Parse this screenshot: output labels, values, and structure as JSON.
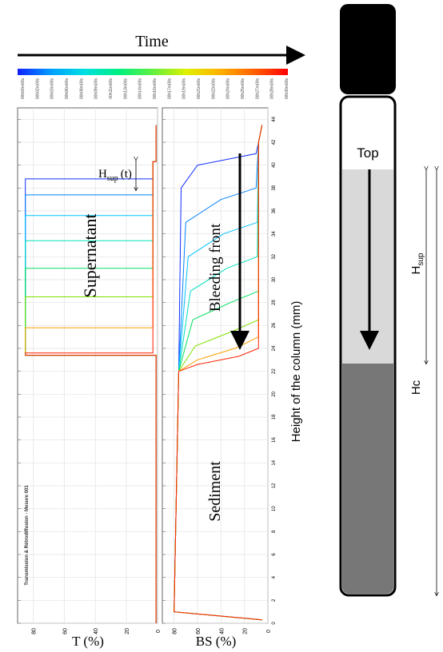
{
  "figure": {
    "time_label": "Time",
    "time_ticks": [
      "00h00m00s",
      "00h02m00s",
      "00h03m00s",
      "00h06m00s",
      "00h08m00s",
      "00h09m00s",
      "00h11m00s",
      "00h13m00s",
      "00h14m00s",
      "00h16m00s",
      "00h17m00s",
      "00h19m00s",
      "00h21m00s",
      "00h22m00s",
      "00h24m00s",
      "00h25m00s",
      "00h27m00s",
      "00h28m00s",
      "00h30m00s"
    ],
    "colorbar_colors": [
      "#1020ff",
      "#00a0ff",
      "#00e0e0",
      "#00f080",
      "#60f040",
      "#e0f000",
      "#ffb000",
      "#ff6000",
      "#ff0000"
    ],
    "height_axis_label": "Height of the column (mm)",
    "side_note": "Transmission & Rétrodiffusion - Mesure 001"
  },
  "chart_data": [
    {
      "type": "line",
      "xlabel": "T (%)",
      "xlim": [
        90,
        0
      ],
      "ylim": [
        0,
        45
      ],
      "xticks": [
        80,
        60,
        40,
        20,
        0
      ],
      "annotations": {
        "region": "Supernatant",
        "h_main": "H",
        "h_sub": "sup",
        "h_t": "(t)"
      },
      "series": [
        {
          "color": "#1030ff",
          "x": [
            1,
            1,
            85,
            85,
            3,
            3,
            1,
            1
          ],
          "values": [
            0,
            23.4,
            23.4,
            38.8,
            38.8,
            40.3,
            40.3,
            43.5
          ]
        },
        {
          "color": "#0080ff",
          "x": [
            1,
            1,
            85,
            85,
            3,
            3,
            1,
            1
          ],
          "values": [
            0,
            23.4,
            23.4,
            37.4,
            37.4,
            40.3,
            40.3,
            43.5
          ]
        },
        {
          "color": "#00c0ff",
          "x": [
            1,
            1,
            85,
            85,
            3,
            3,
            1,
            1
          ],
          "values": [
            0,
            23.4,
            23.4,
            35.6,
            35.6,
            40.3,
            40.3,
            43.5
          ]
        },
        {
          "color": "#00e0c0",
          "x": [
            1,
            1,
            85,
            85,
            3,
            3,
            1,
            1
          ],
          "values": [
            0,
            23.4,
            23.4,
            33.4,
            33.4,
            40.3,
            40.3,
            43.5
          ]
        },
        {
          "color": "#00e060",
          "x": [
            1,
            1,
            85,
            85,
            3,
            3,
            1,
            1
          ],
          "values": [
            0,
            23.4,
            23.4,
            31,
            31,
            40.3,
            40.3,
            43.5
          ]
        },
        {
          "color": "#80e000",
          "x": [
            1,
            1,
            85,
            85,
            3,
            3,
            1,
            1
          ],
          "values": [
            0,
            23.4,
            23.4,
            28.5,
            28.5,
            40.3,
            40.3,
            43.5
          ]
        },
        {
          "color": "#ffa000",
          "x": [
            1,
            1,
            85,
            85,
            3,
            3,
            1,
            1
          ],
          "values": [
            0,
            23.4,
            23.4,
            25.8,
            25.8,
            40.3,
            40.3,
            43.5
          ]
        },
        {
          "color": "#ff2000",
          "x": [
            1,
            1,
            85,
            85,
            3,
            3,
            1,
            1
          ],
          "values": [
            0,
            23.4,
            23.4,
            23.6,
            23.6,
            40.3,
            40.3,
            43.5
          ]
        }
      ]
    },
    {
      "type": "line",
      "xlabel": "BS (%)",
      "xlim": [
        90,
        0
      ],
      "ylim": [
        0,
        45
      ],
      "xticks": [
        80,
        60,
        40,
        20,
        0
      ],
      "yticks": [
        0,
        2,
        4,
        6,
        8,
        10,
        12,
        14,
        16,
        18,
        20,
        22,
        24,
        26,
        28,
        30,
        32,
        34,
        36,
        38,
        40,
        42,
        44
      ],
      "annotations": {
        "front": "Bleeding front",
        "bottom": "Sediment"
      },
      "series": [
        {
          "color": "#1030ff",
          "x": [
            5,
            80,
            76,
            74,
            60,
            10,
            8,
            5
          ],
          "values": [
            0.3,
            1,
            22,
            38,
            40,
            41,
            42,
            43.5
          ]
        },
        {
          "color": "#0080ff",
          "x": [
            5,
            80,
            76,
            70,
            40,
            10,
            8,
            5
          ],
          "values": [
            0.3,
            1,
            22,
            35,
            37,
            38,
            42,
            43.5
          ]
        },
        {
          "color": "#00c0ff",
          "x": [
            5,
            80,
            76,
            68,
            38,
            9,
            8,
            5
          ],
          "values": [
            0.3,
            1,
            22,
            32,
            34,
            35,
            42,
            43.5
          ]
        },
        {
          "color": "#00e0c0",
          "x": [
            5,
            80,
            76,
            66,
            35,
            9,
            8,
            5
          ],
          "values": [
            0.3,
            1,
            22,
            29,
            31,
            32,
            42,
            43.5
          ]
        },
        {
          "color": "#00e060",
          "x": [
            5,
            80,
            76,
            64,
            32,
            8,
            8,
            5
          ],
          "values": [
            0.3,
            1,
            22,
            26.5,
            28,
            29,
            42,
            43.5
          ]
        },
        {
          "color": "#80e000",
          "x": [
            5,
            80,
            76,
            62,
            30,
            8,
            8,
            5
          ],
          "values": [
            0.3,
            1,
            22,
            24.2,
            25.5,
            26.5,
            42,
            43.5
          ]
        },
        {
          "color": "#ffa000",
          "x": [
            5,
            80,
            76,
            60,
            28,
            8,
            8,
            5
          ],
          "values": [
            0.3,
            1,
            22,
            23,
            24,
            25,
            42,
            43.5
          ]
        },
        {
          "color": "#ff2000",
          "x": [
            5,
            80,
            76,
            60,
            25,
            8,
            8,
            5
          ],
          "values": [
            0.3,
            1,
            22,
            22.6,
            23.3,
            24,
            42,
            43.5
          ]
        }
      ]
    }
  ],
  "diagram": {
    "top": "Top",
    "h_main": "H",
    "h_sub": "sup",
    "hc": "Hc"
  }
}
